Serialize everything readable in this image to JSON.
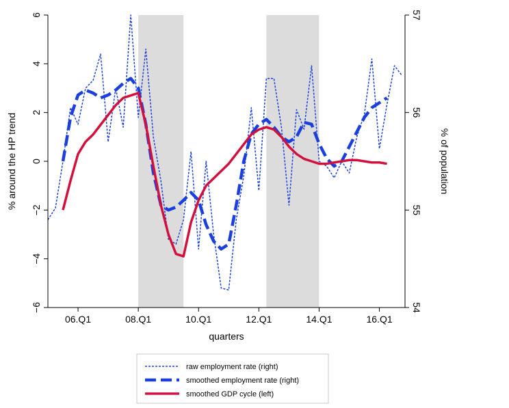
{
  "chart_data": {
    "type": "line",
    "x_label": "quarters",
    "y_label": "% around the HP trend",
    "y2_label": "% of population",
    "x": [
      2005.0,
      2005.25,
      2005.5,
      2005.75,
      2006.0,
      2006.25,
      2006.5,
      2006.75,
      2007.0,
      2007.25,
      2007.5,
      2007.75,
      2008.0,
      2008.25,
      2008.5,
      2008.75,
      2009.0,
      2009.25,
      2009.5,
      2009.75,
      2010.0,
      2010.25,
      2010.5,
      2010.75,
      2011.0,
      2011.25,
      2011.5,
      2011.75,
      2012.0,
      2012.25,
      2012.5,
      2012.75,
      2013.0,
      2013.25,
      2013.5,
      2013.75,
      2014.0,
      2014.25,
      2014.5,
      2014.75,
      2015.0,
      2015.25,
      2015.5,
      2015.75,
      2016.0,
      2016.25,
      2016.5,
      2016.75
    ],
    "xlim": [
      2005.0,
      2016.85
    ],
    "xticks": [
      {
        "value": 2006,
        "label": "06.Q1"
      },
      {
        "value": 2008,
        "label": "08.Q1"
      },
      {
        "value": 2010,
        "label": "10.Q1"
      },
      {
        "value": 2012,
        "label": "12.Q1"
      },
      {
        "value": 2014,
        "label": "14.Q1"
      },
      {
        "value": 2016,
        "label": "16.Q1"
      }
    ],
    "ylim": [
      -6,
      6
    ],
    "yticks": [
      {
        "value": -6,
        "label": "−6"
      },
      {
        "value": -4,
        "label": "−4"
      },
      {
        "value": -2,
        "label": "−2"
      },
      0,
      2,
      4,
      6
    ],
    "y2lim": [
      54,
      57
    ],
    "y2ticks": [
      54,
      55,
      56,
      57
    ],
    "shaded": [
      [
        2008.0,
        2009.5
      ],
      [
        2012.25,
        2014.0
      ]
    ],
    "shade_color": "#dcdcdc",
    "series": [
      {
        "name": "raw employment rate (right)",
        "color": "#1a3fdc",
        "style": "dotted",
        "axis": "y2",
        "values": [
          54.9,
          55.02,
          55.5,
          56.05,
          55.88,
          56.25,
          56.33,
          56.6,
          55.7,
          56.25,
          55.85,
          57.0,
          55.95,
          56.65,
          55.75,
          55.3,
          54.7,
          54.65,
          54.9,
          55.6,
          54.6,
          55.5,
          54.75,
          54.2,
          54.18,
          54.9,
          55.35,
          56.05,
          55.2,
          56.35,
          56.35,
          55.85,
          55.05,
          56.03,
          55.83,
          56.48,
          55.5,
          55.45,
          55.33,
          55.5,
          55.38,
          55.75,
          55.98,
          56.55,
          55.63,
          56.08,
          56.48,
          56.38
        ]
      },
      {
        "name": "smoothed employment rate (right)",
        "color": "#1a3fdc",
        "style": "dashed",
        "axis": "y2",
        "values": [
          null,
          null,
          55.5,
          55.95,
          56.18,
          56.23,
          56.2,
          56.15,
          56.18,
          56.23,
          56.3,
          56.35,
          56.25,
          55.88,
          55.38,
          55.05,
          55.0,
          55.03,
          55.1,
          55.18,
          55.1,
          54.85,
          54.68,
          54.6,
          54.65,
          55.05,
          55.5,
          55.78,
          55.88,
          55.93,
          55.85,
          55.75,
          55.7,
          55.75,
          55.9,
          55.88,
          55.68,
          55.53,
          55.45,
          55.5,
          55.65,
          55.8,
          55.95,
          56.05,
          56.1,
          56.15,
          null,
          null
        ]
      },
      {
        "name": "smoothed GDP cycle (left)",
        "color": "#d1103c",
        "style": "solid",
        "axis": "y",
        "values": [
          null,
          null,
          -2.0,
          -0.8,
          0.3,
          0.8,
          1.1,
          1.5,
          1.9,
          2.3,
          2.6,
          2.7,
          2.8,
          1.5,
          -0.2,
          -1.8,
          -3.0,
          -3.8,
          -3.9,
          -2.5,
          -1.6,
          -1.0,
          -0.7,
          -0.4,
          -0.1,
          0.3,
          0.7,
          1.1,
          1.3,
          1.4,
          1.3,
          1.0,
          0.6,
          0.3,
          0.1,
          0.0,
          -0.1,
          -0.1,
          -0.05,
          0.0,
          0.05,
          0.05,
          0.0,
          -0.05,
          -0.05,
          -0.1,
          null,
          null
        ]
      }
    ]
  }
}
